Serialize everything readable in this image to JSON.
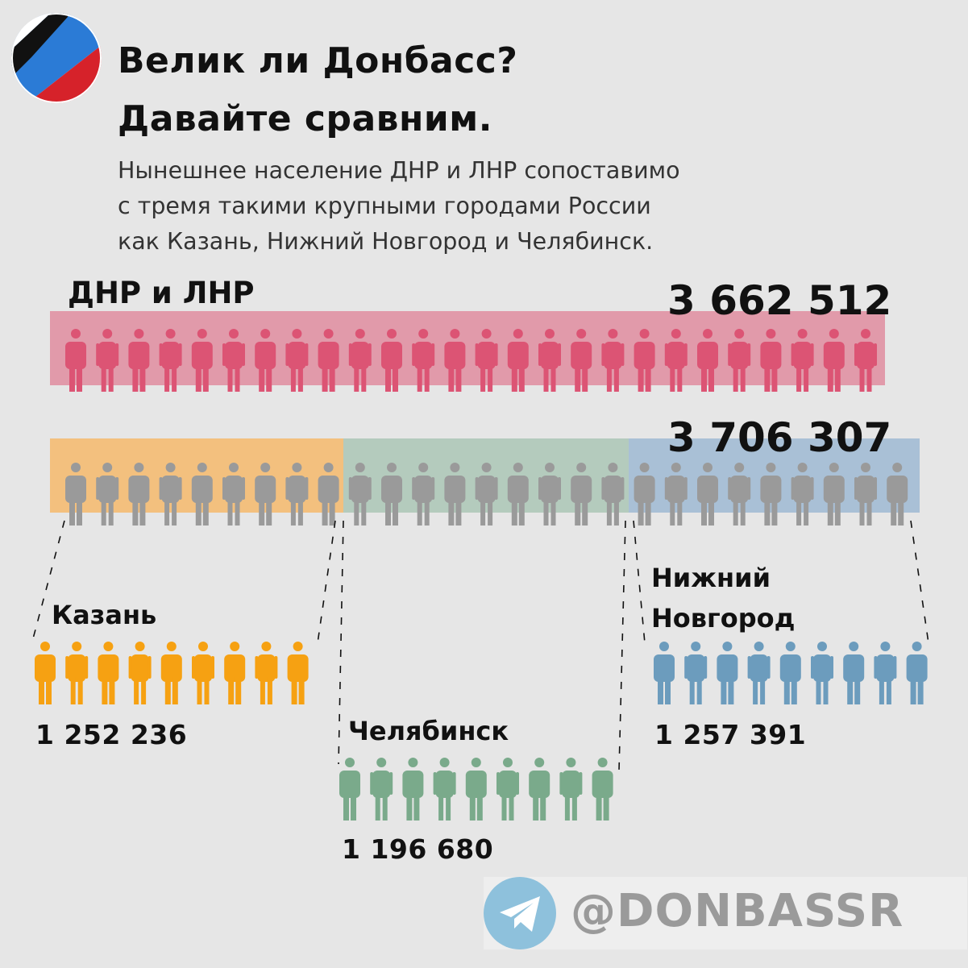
{
  "header": {
    "title_line1": "Велик ли Донбасс?",
    "title_line2": "Давайте сравним.",
    "subtitle_lines": [
      "Нынешнее население ДНР и ЛНР сопоставимо",
      "с тремя такими крупными городами России",
      "как Казань, Нижний Новгород и Челябинск."
    ]
  },
  "dnr_lnr": {
    "label": "ДНР и ЛНР",
    "total": "3 662 512",
    "band_color": "#e19aaa",
    "figure_color": "#dc5474",
    "figure_count": 26
  },
  "cities_total": "3 706 307",
  "cities": [
    {
      "id": "kazan",
      "name": "Казань",
      "population": "1 252 236",
      "band_color": "#f3c07e",
      "figure_color": "#f6a112",
      "figure_count": 9
    },
    {
      "id": "chelyabinsk",
      "name": "Челябинск",
      "population": "1 196 680",
      "band_color": "#b4cbbd",
      "figure_color": "#7aaa8b",
      "figure_count": 9
    },
    {
      "id": "nizhny",
      "name_line1": "Нижний",
      "name_line2": "Новгород",
      "population": "1 257 391",
      "band_color": "#a9c0d6",
      "figure_color": "#6c9cbd",
      "figure_count": 9
    }
  ],
  "gray_figure_color": "#9a9a9a",
  "watermark": {
    "handle": "@DONBASSR",
    "icon": "telegram-icon",
    "icon_color": "#8ec1dc"
  },
  "logo": {
    "icon": "donbass-flag-logo",
    "colors": [
      "#111111",
      "#ffffff",
      "#2b7bd6",
      "#d6222a"
    ]
  }
}
